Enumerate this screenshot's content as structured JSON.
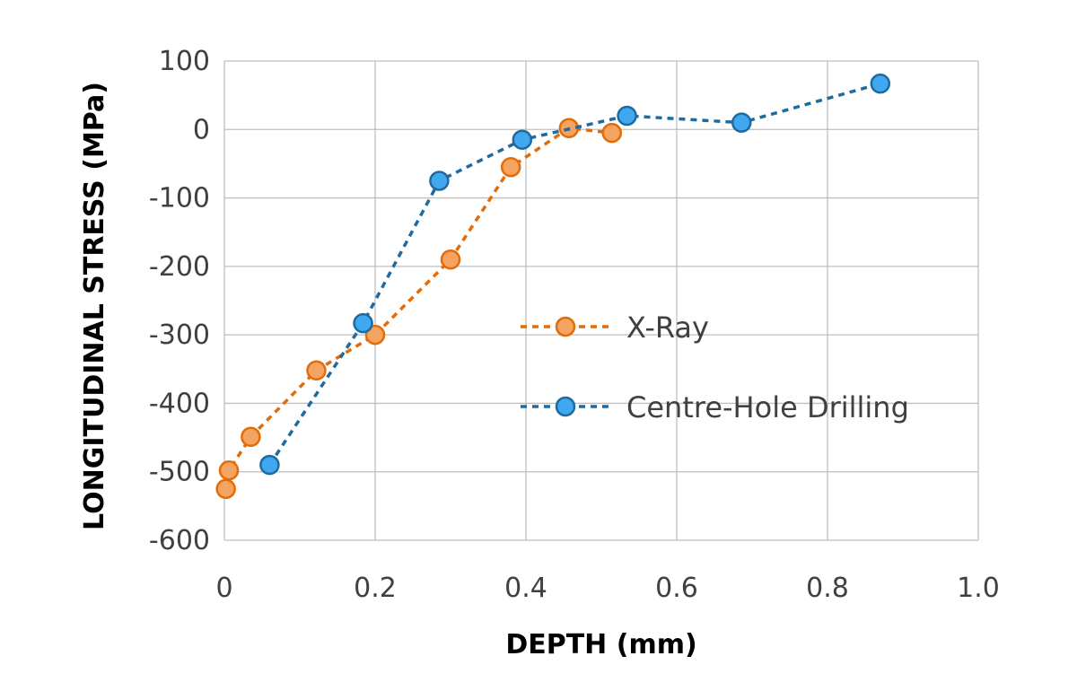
{
  "chart_data": {
    "type": "scatter",
    "xlabel": "DEPTH (mm)",
    "ylabel": "LONGITUDINAL STRESS (MPa)",
    "xlim": [
      0,
      1.0
    ],
    "ylim": [
      -600,
      100
    ],
    "x_ticks": [
      "0",
      "0.2",
      "0.4",
      "0.6",
      "0.8",
      "1.0"
    ],
    "x_tick_values": [
      0,
      0.2,
      0.4,
      0.6,
      0.8,
      1.0
    ],
    "y_ticks": [
      "100",
      "0",
      "-100",
      "-200",
      "-300",
      "-400",
      "-500",
      "-600"
    ],
    "y_tick_values": [
      100,
      0,
      -100,
      -200,
      -300,
      -400,
      -500,
      -600
    ],
    "grid": true,
    "legend_position": "center-right",
    "series": [
      {
        "name": "X-Ray",
        "color": "#E36C0A",
        "fill": "#F4A460",
        "line_style": "dashed",
        "marker": "circle",
        "x": [
          0.002,
          0.006,
          0.035,
          0.122,
          0.2,
          0.3,
          0.38,
          0.457,
          0.514
        ],
        "y": [
          -525,
          -498,
          -449,
          -352,
          -300,
          -190,
          -55,
          2,
          -5
        ]
      },
      {
        "name": "Centre-Hole Drilling",
        "color": "#1F6A9E",
        "fill": "#40A8F0",
        "line_style": "dashed",
        "marker": "circle",
        "x": [
          0.06,
          0.184,
          0.285,
          0.395,
          0.534,
          0.686,
          0.87
        ],
        "y": [
          -490,
          -283,
          -75,
          -15,
          20,
          10,
          67
        ]
      }
    ]
  }
}
